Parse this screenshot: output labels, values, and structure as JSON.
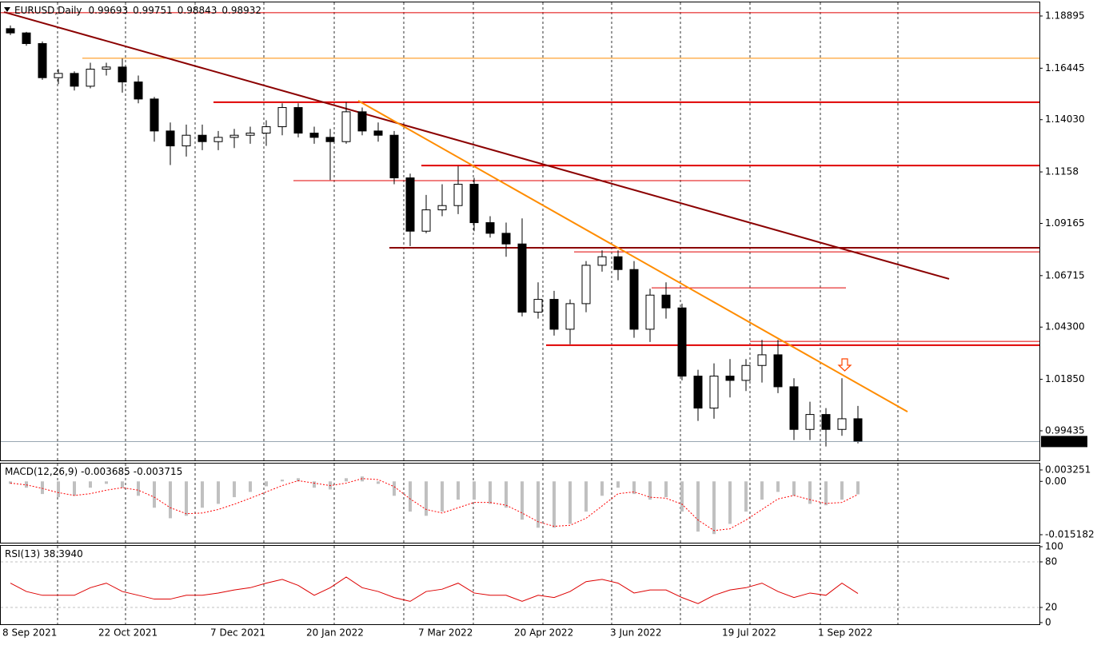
{
  "chart_data": [
    {
      "type": "candlestick",
      "title": "EURUSD,Daily",
      "ohlc": [
        0.99693,
        0.99751,
        0.98843,
        0.98932
      ],
      "categories": [
        "8 Sep 2021",
        null,
        null,
        null,
        null,
        null,
        "22 Oct 2021",
        null,
        null,
        null,
        null,
        null,
        null,
        "7 Dec 2021",
        null,
        null,
        null,
        null,
        null,
        "20 Jan 2022",
        null,
        null,
        null,
        null,
        null,
        null,
        "7 Mar 2022",
        null,
        null,
        null,
        null,
        null,
        "20 Apr 2022",
        null,
        null,
        null,
        null,
        null,
        "3 Jun 2022",
        null,
        null,
        null,
        null,
        null,
        null,
        "19 Jul 2022",
        null,
        null,
        null,
        null,
        null,
        "1 Sep 2022",
        null,
        null
      ],
      "open": [
        1.183,
        1.181,
        1.176,
        1.16,
        1.162,
        1.156,
        1.164,
        1.165,
        1.158,
        1.15,
        1.135,
        1.128,
        1.133,
        1.13,
        1.132,
        1.133,
        1.134,
        1.137,
        1.146,
        1.134,
        1.132,
        1.13,
        1.144,
        1.135,
        1.133,
        1.113,
        1.088,
        1.098,
        1.1,
        1.11,
        1.092,
        1.087,
        1.082,
        1.05,
        1.056,
        1.042,
        1.054,
        1.072,
        1.076,
        1.07,
        1.042,
        1.058,
        1.052,
        1.02,
        1.005,
        1.02,
        1.018,
        1.025,
        1.03,
        1.015,
        0.995,
        1.002,
        0.995,
        1.0
      ],
      "high": [
        1.1845,
        1.1815,
        1.177,
        1.164,
        1.163,
        1.167,
        1.167,
        1.169,
        1.161,
        1.151,
        1.139,
        1.138,
        1.138,
        1.135,
        1.136,
        1.137,
        1.14,
        1.148,
        1.148,
        1.137,
        1.136,
        1.1485,
        1.146,
        1.139,
        1.135,
        1.115,
        1.105,
        1.11,
        1.1185,
        1.113,
        1.095,
        1.092,
        1.094,
        1.064,
        1.06,
        1.056,
        1.074,
        1.079,
        1.079,
        1.074,
        1.061,
        1.064,
        1.054,
        1.023,
        1.026,
        1.028,
        1.028,
        1.037,
        1.037,
        1.019,
        1.008,
        1.005,
        1.019,
        1.006
      ],
      "low": [
        1.18,
        1.175,
        1.159,
        1.157,
        1.154,
        1.155,
        1.161,
        1.153,
        1.148,
        1.13,
        1.119,
        1.123,
        1.126,
        1.126,
        1.127,
        1.129,
        1.128,
        1.133,
        1.132,
        1.129,
        1.112,
        1.129,
        1.133,
        1.13,
        1.11,
        1.081,
        1.087,
        1.095,
        1.096,
        1.088,
        1.085,
        1.076,
        1.048,
        1.047,
        1.039,
        1.035,
        1.05,
        1.069,
        1.065,
        1.038,
        1.036,
        1.047,
        1.018,
        0.999,
        1.0,
        1.01,
        1.013,
        1.017,
        1.012,
        0.99,
        0.99,
        0.987,
        0.992,
        0.98843
      ],
      "close": [
        1.181,
        1.176,
        1.16,
        1.162,
        1.156,
        1.164,
        1.165,
        1.158,
        1.15,
        1.135,
        1.128,
        1.133,
        1.13,
        1.132,
        1.133,
        1.134,
        1.137,
        1.146,
        1.134,
        1.132,
        1.13,
        1.144,
        1.135,
        1.133,
        1.113,
        1.088,
        1.098,
        1.1,
        1.11,
        1.092,
        1.087,
        1.082,
        1.05,
        1.056,
        1.042,
        1.054,
        1.072,
        1.076,
        1.07,
        1.042,
        1.058,
        1.052,
        1.02,
        1.005,
        1.02,
        1.018,
        1.025,
        1.03,
        1.015,
        0.995,
        1.002,
        0.995,
        1.0,
        0.98932
      ],
      "up_color": "#ffffff",
      "down_color": "#000000",
      "outline_color": "#000000",
      "last_price": 0.98932,
      "ylim": [
        0.98085,
        1.19457
      ],
      "yticks": [
        1.18895,
        1.16445,
        {
          "value": 1.1403,
          "label": "1.14030"
        },
        1.1158,
        1.09165,
        1.06715,
        {
          "value": 1.043,
          "label": "1.04300"
        },
        {
          "value": 1.0185,
          "label": "1.01850"
        },
        0.99435
      ],
      "levels": [
        {
          "value": 1.1905,
          "start": -0.65,
          "end": 64.35,
          "color": "#e00000",
          "width": 1
        },
        {
          "value": 1.1691,
          "start": 4.5,
          "end": 64.35,
          "color": "#ff8c00",
          "width": 1
        },
        {
          "value": 1.1485,
          "start": 12.7,
          "end": 64.35,
          "color": "#e00000",
          "width": 2
        },
        {
          "value": 1.1188,
          "start": 25.7,
          "end": 64.35,
          "color": "#e00000",
          "width": 2
        },
        {
          "value": 1.1117,
          "start": 17.7,
          "end": 46.25,
          "color": "#e00000",
          "width": 1
        },
        {
          "value": 1.0802,
          "start": 23.7,
          "end": 64.35,
          "color": "#8b0000",
          "width": 2
        },
        {
          "value": 1.0783,
          "start": 35.25,
          "end": 64.35,
          "color": "#e00000",
          "width": 1
        },
        {
          "value": 1.0614,
          "start": 40.1,
          "end": 52.25,
          "color": "#e00000",
          "width": 1
        },
        {
          "value": 1.0363,
          "start": 46.25,
          "end": 64.35,
          "color": "#e00000",
          "width": 1
        },
        {
          "value": 1.0345,
          "start": 33.5,
          "end": 64.35,
          "color": "#e00000",
          "width": 2
        }
      ],
      "trendlines": [
        {
          "from": [
            -0.4,
            1.1908
          ],
          "to": [
            58.7,
            1.0656
          ],
          "color": "#8b0000",
          "width": 2
        },
        {
          "from": [
            21.75,
            1.1492
          ],
          "to": [
            56.1,
            1.0033
          ],
          "color": "#ff8c00",
          "width": 2
        }
      ]
    },
    {
      "type": "bar",
      "title": "MACD(12,26,9)",
      "last": [
        -0.003685,
        -0.003715
      ],
      "histogram": {
        "color": "#c0c0c0",
        "values": [
          -0.0007,
          -0.0018,
          -0.0036,
          -0.0045,
          -0.0041,
          -0.0018,
          -0.0007,
          -0.0018,
          -0.0041,
          -0.0075,
          -0.0105,
          -0.0098,
          -0.0075,
          -0.0064,
          -0.0045,
          -0.003,
          -0.0014,
          0.0005,
          0.0009,
          -0.0018,
          -0.0023,
          0.0009,
          0.0014,
          -0.0007,
          -0.0041,
          -0.0086,
          -0.0098,
          -0.0086,
          -0.0052,
          -0.0052,
          -0.0064,
          -0.0075,
          -0.0109,
          -0.0132,
          -0.0132,
          -0.0121,
          -0.0086,
          -0.0041,
          -0.0018,
          -0.0036,
          -0.0052,
          -0.0045,
          -0.0086,
          -0.0143,
          -0.015,
          -0.0121,
          -0.0086,
          -0.0052,
          -0.003,
          -0.0041,
          -0.0064,
          -0.0068,
          -0.0052,
          -0.003685
        ]
      },
      "signal": {
        "color": "#ff0000",
        "values": [
          -0.0005,
          -0.001,
          -0.002,
          -0.0032,
          -0.004,
          -0.0035,
          -0.0025,
          -0.0018,
          -0.0025,
          -0.0045,
          -0.0075,
          -0.0092,
          -0.009,
          -0.008,
          -0.0065,
          -0.0048,
          -0.003,
          -0.0012,
          0.0002,
          -0.0005,
          -0.0012,
          -0.0005,
          0.0008,
          0.0005,
          -0.0015,
          -0.005,
          -0.008,
          -0.009,
          -0.0075,
          -0.006,
          -0.006,
          -0.0068,
          -0.009,
          -0.0115,
          -0.0128,
          -0.0125,
          -0.0105,
          -0.007,
          -0.0035,
          -0.003,
          -0.0045,
          -0.0048,
          -0.0065,
          -0.011,
          -0.014,
          -0.0135,
          -0.011,
          -0.008,
          -0.005,
          -0.004,
          -0.0052,
          -0.0063,
          -0.006,
          -0.003715
        ]
      },
      "ylim": [
        -0.01723,
        0.00507
      ],
      "yticks": [
        0.003251,
        {
          "value": 0,
          "label": "0.00"
        },
        -0.015182
      ]
    },
    {
      "type": "line",
      "title": "RSI(13)",
      "last": {
        "value": 38.394,
        "label": "38.3940"
      },
      "color": "#dd0000",
      "values": [
        52,
        41,
        36,
        36,
        36,
        46,
        52,
        41,
        36,
        31,
        31,
        36,
        36,
        39,
        43,
        46,
        52,
        57,
        49,
        36,
        46,
        60,
        46,
        41,
        33,
        28,
        41,
        44,
        52,
        39,
        36,
        36,
        28,
        36,
        33,
        41,
        54,
        57,
        52,
        39,
        43,
        43,
        33,
        25,
        36,
        43,
        46,
        52,
        41,
        33,
        39,
        36,
        52,
        38.394
      ],
      "ylim": [
        0,
        100
      ],
      "yticks": [
        100,
        80,
        20,
        0
      ],
      "grid": [
        80,
        20
      ]
    }
  ]
}
